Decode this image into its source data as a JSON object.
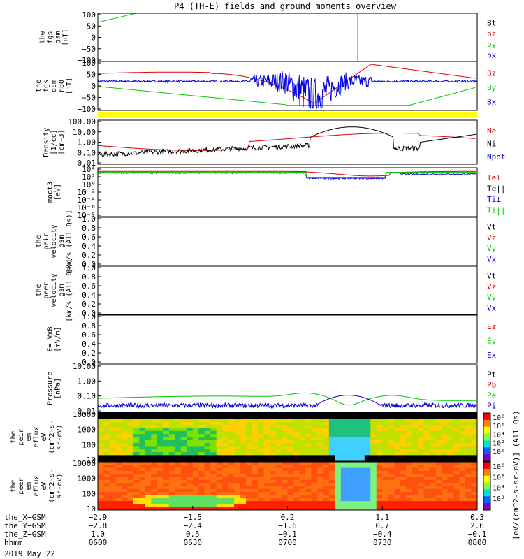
{
  "title": "P4 (TH-E) fields and ground moments overview",
  "date": "2019 May 22",
  "colors": {
    "red": "#e00000",
    "green": "#00c800",
    "blue": "#0000e0",
    "black": "#000000",
    "yellow": "#ffff00"
  },
  "chart_data": [
    {
      "type": "line",
      "name": "fgs",
      "ylabel_lines": [
        "the",
        "fgs",
        "gsm",
        "[nT]"
      ],
      "yticks": [
        "100",
        "50",
        "0",
        "−50",
        "−100"
      ],
      "legend": [
        {
          "label": "Bt",
          "color": "black"
        },
        {
          "label": "bz",
          "color": "red"
        },
        {
          "label": "by",
          "color": "green"
        },
        {
          "label": "bx",
          "color": "blue"
        }
      ]
    },
    {
      "type": "line",
      "name": "fgs-nodes",
      "ylabel_lines": [
        "the",
        "fgs",
        "gsm",
        "n80",
        "[nT]"
      ],
      "yticks": [
        "100",
        "50",
        "0",
        "−50",
        "−100"
      ],
      "legend": [
        {
          "label": "Bz",
          "color": "red"
        },
        {
          "label": "By",
          "color": "green"
        },
        {
          "label": "Bx",
          "color": "blue"
        }
      ]
    },
    {
      "type": "line",
      "name": "density",
      "ylabel_lines": [
        "Density",
        "[1/cc]",
        "[cm−3]"
      ],
      "yticks": [
        "100.00",
        "10.00",
        "1.00",
        "0.10",
        "0.01"
      ],
      "legend": [
        {
          "label": "Ne",
          "color": "red"
        },
        {
          "label": "Ni",
          "color": "black"
        },
        {
          "label": "Npot",
          "color": "blue"
        }
      ]
    },
    {
      "type": "line",
      "name": "temperature",
      "ylabel_lines": [
        "moqt3",
        "[eV]"
      ],
      "yticks": [
        "10⁴",
        "10²",
        "10⁰",
        "10⁻²",
        "10⁻⁴",
        "10⁻⁶",
        "10⁻⁸"
      ],
      "legend": [
        {
          "label": "Te⊥",
          "color": "red"
        },
        {
          "label": "Te||",
          "color": "black"
        },
        {
          "label": "Ti⊥",
          "color": "blue"
        },
        {
          "label": "Ti||",
          "color": "green"
        }
      ]
    },
    {
      "type": "line",
      "name": "peir-velocity",
      "ylabel_lines": [
        "the",
        "peir",
        "velocity",
        "gsm",
        "[km/s (All Qs)]"
      ],
      "yticks": [
        "1.0",
        "0.8",
        "0.6",
        "0.4",
        "0.2",
        "0.0"
      ],
      "legend": [
        {
          "label": "Vt",
          "color": "black"
        },
        {
          "label": "Vz",
          "color": "red"
        },
        {
          "label": "Vy",
          "color": "green"
        },
        {
          "label": "Vx",
          "color": "blue"
        }
      ]
    },
    {
      "type": "line",
      "name": "peer-velocity",
      "ylabel_lines": [
        "the",
        "peer",
        "velocity",
        "gsm",
        "[km/s (All Qs)]"
      ],
      "yticks": [
        "1.0",
        "0.8",
        "0.6",
        "0.4",
        "0.2",
        "0.0"
      ],
      "legend": [
        {
          "label": "Vt",
          "color": "black"
        },
        {
          "label": "Vz",
          "color": "red"
        },
        {
          "label": "Vy",
          "color": "green"
        },
        {
          "label": "Vx",
          "color": "blue"
        }
      ]
    },
    {
      "type": "line",
      "name": "efield",
      "ylabel_lines": [
        "E=−VxB",
        "[mV/m]"
      ],
      "yticks": [
        "1.0",
        "0.8",
        "0.6",
        "0.4",
        "0.2",
        "0.0"
      ],
      "legend": [
        {
          "label": "Ez",
          "color": "red"
        },
        {
          "label": "Ey",
          "color": "green"
        },
        {
          "label": "Ex",
          "color": "blue"
        }
      ]
    },
    {
      "type": "line",
      "name": "pressure",
      "ylabel_lines": [
        "Pressure",
        "[nPa]"
      ],
      "yticks": [
        "10.00",
        "1.00",
        "0.10",
        "0.01"
      ],
      "legend": [
        {
          "label": "Pt",
          "color": "black"
        },
        {
          "label": "Pb",
          "color": "red"
        },
        {
          "label": "Pe",
          "color": "green"
        },
        {
          "label": "Pi",
          "color": "blue"
        }
      ]
    },
    {
      "type": "heatmap",
      "name": "peir-eflux",
      "ylabel_lines": [
        "the",
        "peir",
        "en",
        "eflux",
        "eV",
        "(cm^2-s-",
        "sr-eV)"
      ],
      "yticks": [
        "10000",
        "1000",
        "100",
        "10"
      ],
      "cbar_ticks": [
        "10⁸",
        "10⁶",
        "10⁴",
        "10²",
        "10⁰"
      ]
    },
    {
      "type": "heatmap",
      "name": "peer-eflux",
      "ylabel_lines": [
        "the",
        "peer",
        "en",
        "eflux",
        "eV",
        "(cm^2-s-",
        "sr-eV)"
      ],
      "yticks": [
        "10000",
        "1000",
        "100",
        "10"
      ],
      "cbar_ticks": [
        "10⁸",
        "10⁶",
        "10⁴",
        "10²"
      ]
    }
  ],
  "cbar_label": "[eV/(cm^2-s-sr-eV)] (All Qs)",
  "xaxis": {
    "row_labels": [
      "the_X−GSM",
      "the_Y−GSM",
      "the_Z−GSM",
      "hhmm"
    ],
    "ticks": [
      {
        "X": "−2.9",
        "Y": "−2.8",
        "Z": "1.0",
        "T": "0600"
      },
      {
        "X": "−1.5",
        "Y": "−2.4",
        "Z": "0.5",
        "T": "0630"
      },
      {
        "X": "0.2",
        "Y": "−1.6",
        "Z": "−0.1",
        "T": "0700"
      },
      {
        "X": "1.1",
        "Y": "0.7",
        "Z": "−0.4",
        "T": "0730"
      },
      {
        "X": "0.3",
        "Y": "2.6",
        "Z": "−0.1",
        "T": "0800"
      }
    ]
  }
}
